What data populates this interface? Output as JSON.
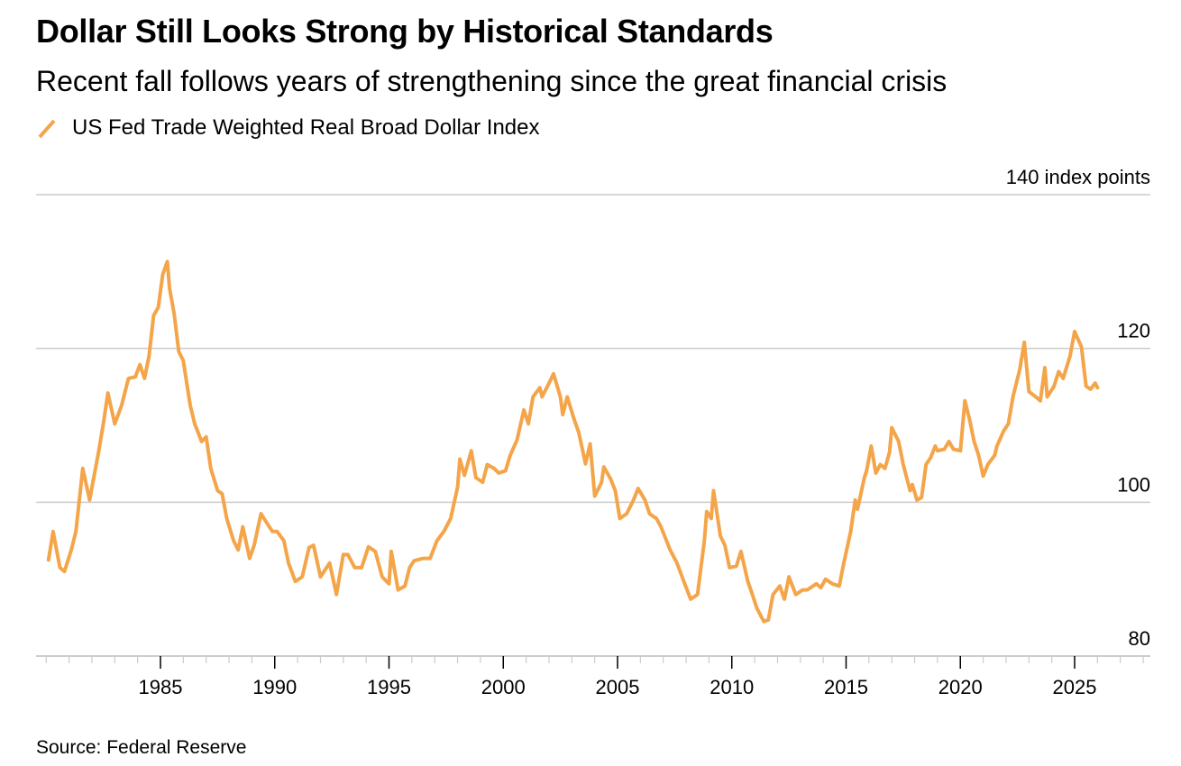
{
  "header": {
    "title": "Dollar Still Looks Strong by Historical Standards",
    "subtitle": "Recent fall follows years of strengthening since the great financial crisis"
  },
  "legend": {
    "items": [
      {
        "label": "US Fed Trade Weighted Real Broad Dollar Index",
        "color": "#F4A54A",
        "icon": "diagonal-line-icon"
      }
    ]
  },
  "footer": {
    "source": "Source: Federal Reserve"
  },
  "chart_data": {
    "type": "line",
    "title": "Dollar Still Looks Strong by Historical Standards",
    "subtitle": "Recent fall follows years of strengthening since the great financial crisis",
    "xlabel": "",
    "ylabel": "index points",
    "ylim": [
      80,
      140
    ],
    "xlim": [
      1979.5,
      2028.3
    ],
    "yticks": [
      80,
      100,
      120,
      140
    ],
    "ytick_labels": [
      "80",
      "100",
      "120",
      "140 index points"
    ],
    "xticks": [
      1985,
      1990,
      1995,
      2000,
      2005,
      2010,
      2015,
      2020,
      2025
    ],
    "xtick_labels": [
      "1985",
      "1990",
      "1995",
      "2000",
      "2005",
      "2010",
      "2015",
      "2020",
      "2025"
    ],
    "minor_xticks_every_year": true,
    "grid": true,
    "legend_position": "top-left",
    "source": "Source: Federal Reserve",
    "series": [
      {
        "name": "US Fed Trade Weighted Real Broad Dollar Index",
        "color": "#F4A54A",
        "x": [
          1980.1,
          1980.3,
          1980.6,
          1980.8,
          1981.1,
          1981.3,
          1981.6,
          1981.9,
          1982.3,
          1982.5,
          1982.7,
          1983.0,
          1983.3,
          1983.6,
          1983.9,
          1984.1,
          1984.3,
          1984.5,
          1984.7,
          1984.9,
          1985.1,
          1985.3,
          1985.4,
          1985.6,
          1985.8,
          1986.0,
          1986.3,
          1986.5,
          1986.8,
          1987.0,
          1987.2,
          1987.5,
          1987.7,
          1987.9,
          1988.2,
          1988.4,
          1988.6,
          1988.9,
          1989.1,
          1989.4,
          1989.7,
          1989.9,
          1990.1,
          1990.4,
          1990.6,
          1990.9,
          1991.2,
          1991.5,
          1991.7,
          1992.0,
          1992.4,
          1992.7,
          1993.0,
          1993.2,
          1993.5,
          1993.8,
          1994.1,
          1994.4,
          1994.7,
          1995.0,
          1995.1,
          1995.4,
          1995.7,
          1995.9,
          1996.1,
          1996.5,
          1996.8,
          1997.1,
          1997.4,
          1997.7,
          1998.0,
          1998.1,
          1998.3,
          1998.6,
          1998.8,
          1999.1,
          1999.3,
          1999.6,
          1999.8,
          2000.1,
          2000.3,
          2000.6,
          2000.9,
          2001.1,
          2001.3,
          2001.6,
          2001.7,
          2002.0,
          2002.2,
          2002.5,
          2002.6,
          2002.8,
          2003.1,
          2003.3,
          2003.6,
          2003.8,
          2004.0,
          2004.3,
          2004.4,
          2004.7,
          2004.9,
          2005.1,
          2005.4,
          2005.7,
          2005.9,
          2006.2,
          2006.4,
          2006.7,
          2006.9,
          2007.3,
          2007.6,
          2007.9,
          2008.2,
          2008.5,
          2008.8,
          2008.9,
          2009.1,
          2009.2,
          2009.5,
          2009.7,
          2009.9,
          2010.2,
          2010.4,
          2010.7,
          2010.9,
          2011.1,
          2011.4,
          2011.6,
          2011.8,
          2012.1,
          2012.3,
          2012.5,
          2012.8,
          2013.1,
          2013.3,
          2013.7,
          2013.9,
          2014.1,
          2014.4,
          2014.7,
          2014.9,
          2015.2,
          2015.4,
          2015.5,
          2015.8,
          2015.9,
          2016.1,
          2016.3,
          2016.5,
          2016.7,
          2016.9,
          2017.0,
          2017.3,
          2017.5,
          2017.8,
          2017.9,
          2018.1,
          2018.3,
          2018.5,
          2018.7,
          2018.9,
          2019.0,
          2019.3,
          2019.5,
          2019.7,
          2020.0,
          2020.2,
          2020.4,
          2020.6,
          2020.8,
          2021.0,
          2021.2,
          2021.5,
          2021.6,
          2021.9,
          2022.1,
          2022.3,
          2022.6,
          2022.8,
          2023.0,
          2023.3,
          2023.5,
          2023.7,
          2023.8,
          2024.1,
          2024.3,
          2024.5,
          2024.8,
          2025.0,
          2025.3,
          2025.5,
          2025.7,
          2025.9,
          2026.0
        ],
        "values": [
          92.5,
          96.2,
          91.5,
          91.0,
          93.8,
          96.2,
          104.4,
          100.3,
          106.7,
          110.2,
          114.2,
          110.2,
          112.6,
          116.1,
          116.3,
          117.9,
          116.1,
          119.0,
          124.3,
          125.3,
          129.6,
          131.3,
          127.8,
          124.5,
          119.6,
          118.4,
          112.6,
          110.2,
          107.9,
          108.5,
          104.4,
          101.5,
          101.1,
          97.9,
          95.0,
          93.8,
          96.8,
          92.7,
          94.4,
          98.5,
          97.1,
          96.2,
          96.2,
          95.0,
          92.1,
          89.7,
          90.3,
          94.1,
          94.4,
          90.3,
          92.1,
          88.0,
          93.2,
          93.2,
          91.5,
          91.5,
          94.2,
          93.6,
          90.3,
          89.4,
          93.6,
          88.6,
          89.1,
          91.5,
          92.4,
          92.7,
          92.7,
          95.0,
          96.2,
          97.9,
          102.0,
          105.6,
          103.5,
          106.7,
          103.2,
          102.6,
          104.9,
          104.4,
          103.8,
          104.1,
          106.1,
          108.1,
          112.0,
          110.2,
          113.7,
          114.9,
          113.7,
          115.5,
          116.7,
          113.7,
          111.4,
          113.7,
          110.8,
          109.1,
          105.0,
          107.6,
          100.8,
          102.6,
          104.6,
          103.0,
          101.5,
          97.9,
          98.5,
          100.3,
          101.8,
          100.3,
          98.5,
          97.9,
          96.8,
          93.8,
          92.1,
          89.7,
          87.4,
          88.0,
          95.0,
          98.8,
          97.9,
          101.5,
          95.6,
          94.4,
          91.5,
          91.7,
          93.6,
          89.7,
          88.0,
          86.2,
          84.5,
          84.7,
          88.0,
          89.1,
          87.4,
          90.3,
          88.0,
          88.6,
          88.6,
          89.4,
          88.9,
          90.0,
          89.4,
          89.1,
          92.1,
          96.2,
          100.3,
          99.1,
          103.2,
          104.1,
          107.3,
          103.8,
          104.9,
          104.4,
          106.5,
          109.7,
          107.9,
          104.9,
          101.5,
          102.3,
          100.3,
          100.6,
          104.9,
          105.8,
          107.3,
          106.7,
          106.9,
          107.9,
          106.9,
          106.7,
          113.2,
          110.8,
          107.9,
          106.1,
          103.4,
          104.9,
          106.1,
          107.3,
          109.3,
          110.2,
          113.7,
          117.3,
          120.8,
          114.4,
          113.7,
          113.2,
          117.5,
          113.7,
          115.1,
          117.0,
          116.1,
          119.0,
          122.2,
          120.2,
          115.1,
          114.7,
          115.5,
          114.9
        ]
      }
    ]
  }
}
